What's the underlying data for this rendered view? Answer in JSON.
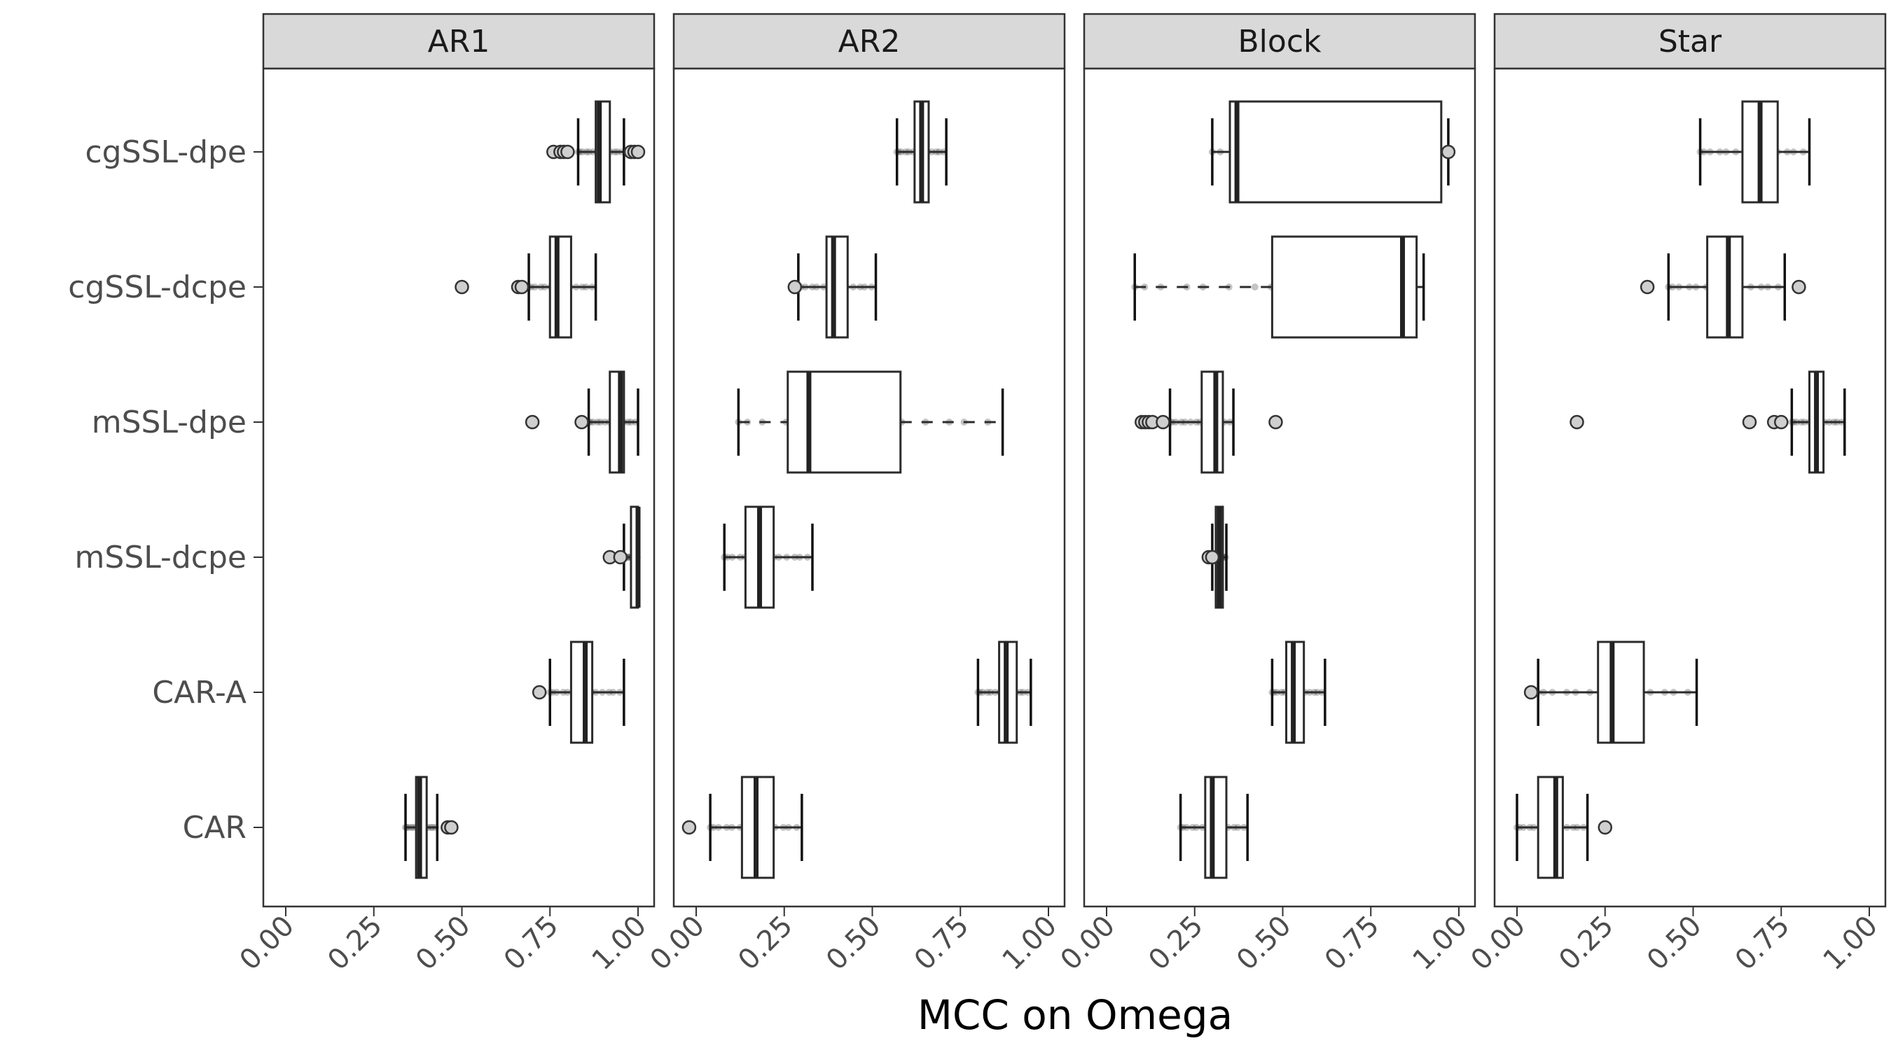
{
  "chart_data": {
    "type": "boxplot",
    "layout": "facets-horizontal",
    "xlabel": "MCC on Omega",
    "ylabel": "",
    "xlim": [
      0,
      1
    ],
    "xticks": [
      "0.00",
      "0.25",
      "0.50",
      "0.75",
      "1.00"
    ],
    "xtick_values": [
      0,
      0.25,
      0.5,
      0.75,
      1.0
    ],
    "categories": [
      "cgSSL-dpe",
      "cgSSL-dcpe",
      "mSSL-dpe",
      "mSSL-dcpe",
      "CAR-A",
      "CAR"
    ],
    "facets": [
      {
        "title": "AR1",
        "boxes": [
          {
            "category": "cgSSL-dpe",
            "whisker_low": 0.83,
            "q1": 0.88,
            "median": 0.89,
            "q3": 0.92,
            "whisker_high": 0.96,
            "outliers": [
              0.76,
              0.78,
              0.79,
              0.8,
              0.98,
              0.99,
              1.0
            ],
            "dashed": false
          },
          {
            "category": "cgSSL-dcpe",
            "whisker_low": 0.69,
            "q1": 0.75,
            "median": 0.77,
            "q3": 0.81,
            "whisker_high": 0.88,
            "outliers": [
              0.5,
              0.66,
              0.67
            ],
            "dashed": false
          },
          {
            "category": "mSSL-dpe",
            "whisker_low": 0.86,
            "q1": 0.92,
            "median": 0.95,
            "q3": 0.96,
            "whisker_high": 1.0,
            "outliers": [
              0.7,
              0.84
            ],
            "dashed": false
          },
          {
            "category": "mSSL-dcpe",
            "whisker_low": 0.96,
            "q1": 0.98,
            "median": 1.0,
            "q3": 1.0,
            "whisker_high": 1.0,
            "outliers": [
              0.92,
              0.95
            ],
            "dashed": false
          },
          {
            "category": "CAR-A",
            "whisker_low": 0.75,
            "q1": 0.81,
            "median": 0.85,
            "q3": 0.87,
            "whisker_high": 0.96,
            "outliers": [
              0.72
            ],
            "dashed": false
          },
          {
            "category": "CAR",
            "whisker_low": 0.34,
            "q1": 0.37,
            "median": 0.38,
            "q3": 0.4,
            "whisker_high": 0.43,
            "outliers": [
              0.46,
              0.47
            ],
            "dashed": false
          }
        ]
      },
      {
        "title": "AR2",
        "boxes": [
          {
            "category": "cgSSL-dpe",
            "whisker_low": 0.57,
            "q1": 0.62,
            "median": 0.64,
            "q3": 0.66,
            "whisker_high": 0.71,
            "outliers": [],
            "dashed": false
          },
          {
            "category": "cgSSL-dcpe",
            "whisker_low": 0.29,
            "q1": 0.37,
            "median": 0.39,
            "q3": 0.43,
            "whisker_high": 0.51,
            "outliers": [
              0.28
            ],
            "dashed": false
          },
          {
            "category": "mSSL-dpe",
            "whisker_low": 0.12,
            "q1": 0.26,
            "median": 0.32,
            "q3": 0.58,
            "whisker_high": 0.87,
            "outliers": [],
            "dashed": true
          },
          {
            "category": "mSSL-dcpe",
            "whisker_low": 0.08,
            "q1": 0.14,
            "median": 0.18,
            "q3": 0.22,
            "whisker_high": 0.33,
            "outliers": [],
            "dashed": false
          },
          {
            "category": "CAR-A",
            "whisker_low": 0.8,
            "q1": 0.86,
            "median": 0.88,
            "q3": 0.91,
            "whisker_high": 0.95,
            "outliers": [],
            "dashed": false
          },
          {
            "category": "CAR",
            "whisker_low": 0.04,
            "q1": 0.13,
            "median": 0.17,
            "q3": 0.22,
            "whisker_high": 0.3,
            "outliers": [
              -0.02
            ],
            "dashed": false
          }
        ]
      },
      {
        "title": "Block",
        "boxes": [
          {
            "category": "cgSSL-dpe",
            "whisker_low": 0.3,
            "q1": 0.35,
            "median": 0.37,
            "q3": 0.95,
            "whisker_high": 0.97,
            "outliers": [
              0.97
            ],
            "dashed": false
          },
          {
            "category": "cgSSL-dcpe",
            "whisker_low": 0.08,
            "q1": 0.47,
            "median": 0.84,
            "q3": 0.88,
            "whisker_high": 0.9,
            "outliers": [],
            "dashed": true
          },
          {
            "category": "mSSL-dpe",
            "whisker_low": 0.18,
            "q1": 0.27,
            "median": 0.31,
            "q3": 0.33,
            "whisker_high": 0.36,
            "outliers": [
              0.1,
              0.11,
              0.12,
              0.13,
              0.16,
              0.48
            ],
            "dashed": false
          },
          {
            "category": "mSSL-dcpe",
            "whisker_low": 0.3,
            "q1": 0.31,
            "median": 0.32,
            "q3": 0.33,
            "whisker_high": 0.34,
            "outliers": [
              0.29,
              0.3
            ],
            "dashed": false
          },
          {
            "category": "CAR-A",
            "whisker_low": 0.47,
            "q1": 0.51,
            "median": 0.53,
            "q3": 0.56,
            "whisker_high": 0.62,
            "outliers": [],
            "dashed": false
          },
          {
            "category": "CAR",
            "whisker_low": 0.21,
            "q1": 0.28,
            "median": 0.3,
            "q3": 0.34,
            "whisker_high": 0.4,
            "outliers": [],
            "dashed": false
          }
        ]
      },
      {
        "title": "Star",
        "boxes": [
          {
            "category": "cgSSL-dpe",
            "whisker_low": 0.52,
            "q1": 0.64,
            "median": 0.69,
            "q3": 0.74,
            "whisker_high": 0.83,
            "outliers": [],
            "dashed": false
          },
          {
            "category": "cgSSL-dcpe",
            "whisker_low": 0.43,
            "q1": 0.54,
            "median": 0.6,
            "q3": 0.64,
            "whisker_high": 0.76,
            "outliers": [
              0.37,
              0.8
            ],
            "dashed": false
          },
          {
            "category": "mSSL-dpe",
            "whisker_low": 0.78,
            "q1": 0.83,
            "median": 0.85,
            "q3": 0.87,
            "whisker_high": 0.93,
            "outliers": [
              0.17,
              0.66,
              0.73,
              0.75
            ],
            "dashed": false
          },
          {
            "category": "CAR-A",
            "whisker_low": 0.06,
            "q1": 0.23,
            "median": 0.27,
            "q3": 0.36,
            "whisker_high": 0.51,
            "outliers": [
              0.04
            ],
            "dashed": false
          },
          {
            "category": "CAR",
            "whisker_low": 0.0,
            "q1": 0.06,
            "median": 0.11,
            "q3": 0.13,
            "whisker_high": 0.2,
            "outliers": [
              0.25
            ],
            "dashed": false
          }
        ]
      }
    ],
    "grid": false,
    "legend": "none"
  },
  "colors": {
    "strip_background": "#d9d9d9",
    "strip_border": "#333333",
    "panel_border": "#333333",
    "box_stroke": "#2b2b2b",
    "jitter_point": "#555555",
    "background": "#ffffff"
  }
}
